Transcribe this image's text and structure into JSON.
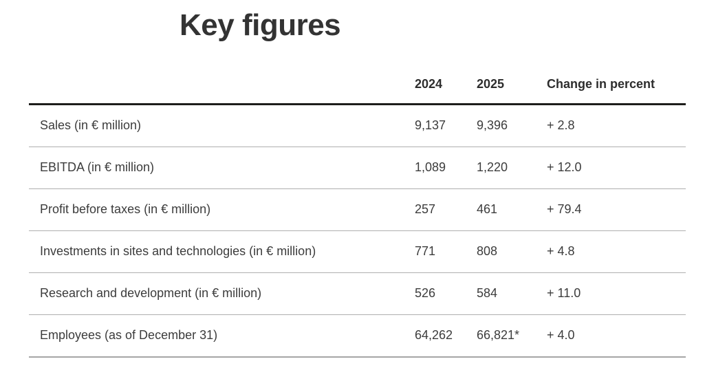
{
  "page": {
    "title": "Key figures"
  },
  "table": {
    "columns": [
      "",
      "2024",
      "2025",
      "Change in percent"
    ],
    "rows": [
      {
        "label": "Sales (in € million)",
        "y2024": "9,137",
        "y2025": "9,396",
        "change": "+ 2.8"
      },
      {
        "label": "EBITDA (in € million)",
        "y2024": "1,089",
        "y2025": "1,220",
        "change": "+ 12.0"
      },
      {
        "label": "Profit before taxes (in € million)",
        "y2024": "257",
        "y2025": "461",
        "change": "+ 79.4"
      },
      {
        "label": "Investments in sites and technologies (in € million)",
        "y2024": "771",
        "y2025": "808",
        "change": "+ 4.8"
      },
      {
        "label": "Research and development (in € million)",
        "y2024": "526",
        "y2025": "584",
        "change": "+ 11.0"
      },
      {
        "label": "Employees (as of December 31)",
        "y2024": "64,262",
        "y2025": "66,821*",
        "change": "+ 4.0"
      }
    ]
  },
  "colors": {
    "text": "#3c3c3c",
    "title": "#333333",
    "header_rule": "#1d1d1b",
    "row_rule": "#aeaeae",
    "bottom_rule": "#a5a5a5",
    "background": "#ffffff"
  }
}
